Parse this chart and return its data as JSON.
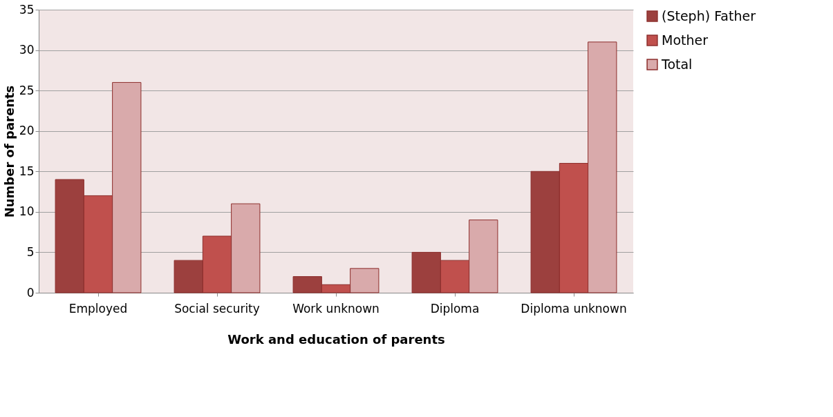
{
  "chart_data": {
    "type": "bar",
    "xlabel": "Work and education of parents",
    "ylabel": "Number of parents",
    "categories": [
      "Employed",
      "Social security",
      "Work unknown",
      "Diploma",
      "Diploma unknown"
    ],
    "series": [
      {
        "name": "(Steph) Father",
        "color": "#9c403e",
        "values": [
          14,
          4,
          2,
          5,
          15
        ]
      },
      {
        "name": "Mother",
        "color": "#c0504d",
        "values": [
          12,
          7,
          1,
          4,
          16
        ]
      },
      {
        "name": "Total",
        "color": "#d9aaab",
        "values": [
          26,
          11,
          3,
          9,
          31
        ]
      }
    ],
    "ylim": [
      0,
      35
    ],
    "yticks": [
      0,
      5,
      10,
      15,
      20,
      25,
      30,
      35
    ],
    "grid": "y",
    "legend": "right"
  }
}
